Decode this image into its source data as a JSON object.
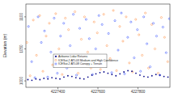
{
  "chart_data": {
    "type": "scatter",
    "y_label": "Elevation (m)",
    "xlim": [
      4227240,
      4227960
    ],
    "xticks": [
      4227400,
      4227600,
      4227800
    ],
    "ylim": [
      990,
      1120
    ],
    "yticks": [
      1000,
      1050,
      1100
    ],
    "legend": "bottom",
    "series": [
      {
        "name": "Airborne Lidar Returns",
        "color": "#0a0a8c",
        "marker": "point",
        "x": [
          4227250,
          4227270,
          4227290,
          4227310,
          4227330,
          4227350,
          4227370,
          4227390,
          4227410,
          4227430,
          4227450,
          4227470,
          4227490,
          4227510,
          4227530,
          4227550,
          4227570,
          4227590,
          4227610,
          4227630,
          4227650,
          4227670,
          4227690,
          4227710,
          4227730,
          4227750,
          4227770,
          4227790,
          4227810,
          4227830,
          4227850,
          4227870,
          4227890,
          4227910,
          4227930,
          4227950
        ],
        "values": [
          1002,
          1001,
          1003,
          1002,
          1004,
          1003,
          1005,
          1004,
          1003,
          1006,
          1008,
          1007,
          1005,
          1004,
          1003,
          1006,
          1009,
          1011,
          1013,
          1014,
          1012,
          1010,
          1008,
          1011,
          1014,
          1016,
          1015,
          1012,
          1009,
          1007,
          1006,
          1008,
          1010,
          1009,
          1007,
          1006
        ]
      },
      {
        "name": "ICESat-2 ATL03 Medium and High Confidence",
        "color": "#ff8a3d",
        "marker": "circle",
        "x": [
          4227245,
          4227261,
          4227277,
          4227293,
          4227309,
          4227325,
          4227341,
          4227357,
          4227373,
          4227389,
          4227405,
          4227421,
          4227437,
          4227453,
          4227469,
          4227485,
          4227501,
          4227517,
          4227533,
          4227549,
          4227565,
          4227581,
          4227597,
          4227613,
          4227629,
          4227645,
          4227661,
          4227677,
          4227693,
          4227709,
          4227725,
          4227741,
          4227757,
          4227773,
          4227789,
          4227805,
          4227821,
          4227837,
          4227853,
          4227869,
          4227885,
          4227901,
          4227917,
          4227933,
          4227949
        ],
        "values": [
          1060,
          1008,
          1095,
          1040,
          1102,
          1015,
          1070,
          1090,
          1025,
          1105,
          1050,
          1010,
          1098,
          1080,
          1030,
          1108,
          1012,
          1065,
          1100,
          1045,
          1020,
          1092,
          1075,
          1018,
          1104,
          1055,
          1035,
          1110,
          1016,
          1085,
          1062,
          1100,
          1028,
          1014,
          1096,
          1072,
          1040,
          1106,
          1020,
          1088,
          1050,
          1012,
          1099,
          1068,
          1030
        ]
      },
      {
        "name": "ICESat-2 ATL08 Canopy + Terrain",
        "color": "#2846ff",
        "marker": "circle",
        "x": [
          4227253,
          4227269,
          4227285,
          4227301,
          4227317,
          4227333,
          4227349,
          4227365,
          4227381,
          4227397,
          4227413,
          4227429,
          4227445,
          4227461,
          4227477,
          4227493,
          4227509,
          4227525,
          4227541,
          4227557,
          4227573,
          4227589,
          4227605,
          4227621,
          4227637,
          4227653,
          4227669,
          4227685,
          4227701,
          4227717,
          4227733,
          4227749,
          4227765,
          4227781,
          4227797,
          4227813,
          4227829,
          4227845,
          4227861,
          4227877,
          4227893,
          4227909,
          4227925,
          4227941,
          4227957
        ],
        "values": [
          1085,
          1030,
          1005,
          1100,
          1060,
          1078,
          1006,
          1045,
          1098,
          1012,
          1070,
          1090,
          1020,
          1055,
          1104,
          1009,
          1082,
          1038,
          1096,
          1066,
          1010,
          1050,
          1102,
          1088,
          1025,
          1074,
          1013,
          1094,
          1048,
          1106,
          1011,
          1068,
          1092,
          1036,
          1080,
          1015,
          1100,
          1058,
          1022,
          1090,
          1070,
          1009,
          1084,
          1044,
          1097
        ]
      }
    ]
  }
}
